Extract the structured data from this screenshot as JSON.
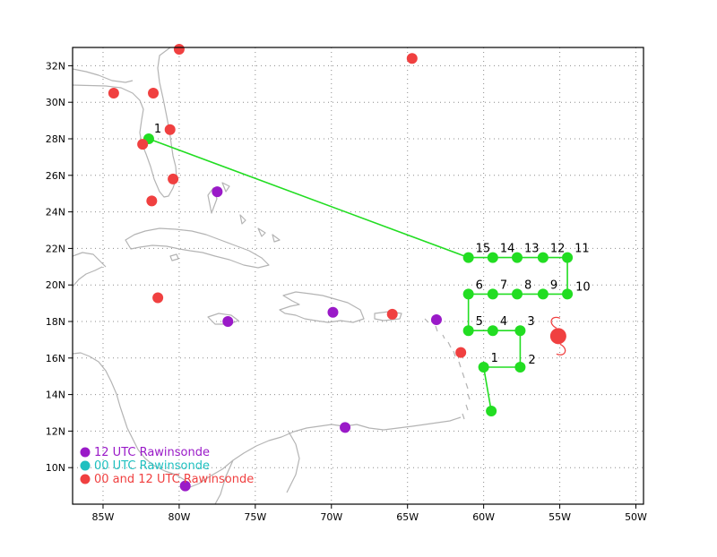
{
  "map": {
    "lon_range": [
      -87,
      -49.5
    ],
    "lat_range": [
      8,
      33
    ],
    "lon_ticks": [
      {
        "value": -85,
        "label": "85W"
      },
      {
        "value": -80,
        "label": "80W"
      },
      {
        "value": -75,
        "label": "75W"
      },
      {
        "value": -70,
        "label": "70W"
      },
      {
        "value": -65,
        "label": "65W"
      },
      {
        "value": -60,
        "label": "60W"
      },
      {
        "value": -55,
        "label": "55W"
      },
      {
        "value": -50,
        "label": "50W"
      }
    ],
    "lat_ticks": [
      {
        "value": 10,
        "label": "10N"
      },
      {
        "value": 12,
        "label": "12N"
      },
      {
        "value": 14,
        "label": "14N"
      },
      {
        "value": 16,
        "label": "16N"
      },
      {
        "value": 18,
        "label": "18N"
      },
      {
        "value": 20,
        "label": "20N"
      },
      {
        "value": 22,
        "label": "22N"
      },
      {
        "value": 24,
        "label": "24N"
      },
      {
        "value": 26,
        "label": "26N"
      },
      {
        "value": 28,
        "label": "28N"
      },
      {
        "value": 30,
        "label": "30N"
      },
      {
        "value": 32,
        "label": "32N"
      }
    ],
    "grid": true,
    "colors": {
      "coast": "#b4b4b4",
      "grid": "#8c8c8c",
      "flight_track": "#22dd22",
      "storm": "#f04040",
      "purple": "#9a1ac8",
      "cyan": "#20c0c0",
      "red": "#f04040"
    }
  },
  "flight_track": [
    {
      "label": "1",
      "lon": -82.0,
      "lat": 28.0
    },
    {
      "label": "15",
      "lon": -61.0,
      "lat": 21.5
    },
    {
      "label": "14",
      "lon": -59.4,
      "lat": 21.5
    },
    {
      "label": "13",
      "lon": -57.8,
      "lat": 21.5
    },
    {
      "label": "12",
      "lon": -56.1,
      "lat": 21.5
    },
    {
      "label": "11",
      "lon": -54.5,
      "lat": 21.5
    },
    {
      "label": "10",
      "lon": -54.5,
      "lat": 19.5
    },
    {
      "label": "9",
      "lon": -56.1,
      "lat": 19.5
    },
    {
      "label": "8",
      "lon": -57.8,
      "lat": 19.5
    },
    {
      "label": "7",
      "lon": -59.4,
      "lat": 19.5
    },
    {
      "label": "6",
      "lon": -61.0,
      "lat": 19.5
    },
    {
      "label": "5",
      "lon": -61.0,
      "lat": 17.5
    },
    {
      "label": "4",
      "lon": -59.4,
      "lat": 17.5
    },
    {
      "label": "3",
      "lon": -57.6,
      "lat": 17.5
    },
    {
      "label": "2",
      "lon": -57.6,
      "lat": 15.5
    },
    {
      "label": "1",
      "lon": -60.0,
      "lat": 15.5
    },
    {
      "label": "",
      "lon": -59.5,
      "lat": 13.1
    }
  ],
  "storm_position": {
    "lon": -55.1,
    "lat": 17.2
  },
  "rawinsondes": {
    "purple": [
      {
        "lon": -77.5,
        "lat": 25.1
      },
      {
        "lon": -76.8,
        "lat": 18.0
      },
      {
        "lon": -69.9,
        "lat": 18.5
      },
      {
        "lon": -63.1,
        "lat": 18.1
      },
      {
        "lon": -69.1,
        "lat": 12.2
      },
      {
        "lon": -79.6,
        "lat": 9.0
      }
    ],
    "red": [
      {
        "lon": -80.0,
        "lat": 32.9
      },
      {
        "lon": -64.7,
        "lat": 32.4
      },
      {
        "lon": -84.3,
        "lat": 30.5
      },
      {
        "lon": -81.7,
        "lat": 30.5
      },
      {
        "lon": -80.6,
        "lat": 28.5
      },
      {
        "lon": -82.4,
        "lat": 27.7
      },
      {
        "lon": -80.4,
        "lat": 25.8
      },
      {
        "lon": -81.8,
        "lat": 24.6
      },
      {
        "lon": -81.4,
        "lat": 19.3
      },
      {
        "lon": -66.0,
        "lat": 18.4
      },
      {
        "lon": -61.5,
        "lat": 16.3
      }
    ]
  },
  "legend": [
    {
      "label": "12 UTC Rawinsonde",
      "color_key": "purple"
    },
    {
      "label": "00 UTC Rawinsonde",
      "color_key": "cyan"
    },
    {
      "label": "00 and 12 UTC Rawinsonde",
      "color_key": "red"
    }
  ]
}
